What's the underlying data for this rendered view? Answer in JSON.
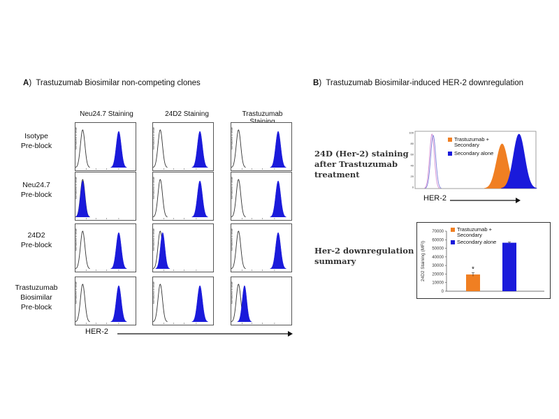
{
  "panel_a": {
    "letter": "A",
    "title": "Trastuzumab Biosimilar non-competing clones",
    "columns": [
      "Neu24.7 Staining",
      "24D2 Staining",
      "Trastuzumab Staining"
    ],
    "rows": [
      [
        "Isotype",
        "Pre-block"
      ],
      [
        "Neu24.7",
        "Pre-block"
      ],
      [
        "24D2",
        "Pre-block"
      ],
      [
        "Trastuzumab",
        "Biosimilar",
        "Pre-block"
      ]
    ],
    "axis_label": "HER-2"
  },
  "panel_b": {
    "letter": "B",
    "title": "Trastuzumab Biosimilar-induced HER-2 downregulation",
    "text1": [
      "24D (Her-2) staining",
      "after Trastuzumab",
      "treatment"
    ],
    "text2": [
      "Her-2 downregulation",
      "summary"
    ],
    "axis_label": "HER-2"
  },
  "colors": {
    "blue": "#1a1adb",
    "orange": "#f07f22",
    "isotype": "#333333"
  },
  "chart_data": [
    {
      "type": "area",
      "kind": "histogram-grid",
      "x_scale": "log",
      "ylabel": "Normalized To Mode",
      "xlabel": "HER-2",
      "columns": [
        "Neu24.7 Staining",
        "24D2 Staining",
        "Trastuzumab Staining"
      ],
      "rows": [
        "Isotype Pre-block",
        "Neu24.7 Pre-block",
        "24D2 Pre-block",
        "Trastuzumab Biosimilar Pre-block"
      ],
      "isotype_peak": 0.12,
      "stained_peaks": [
        [
          0.72,
          0.78,
          0.78
        ],
        [
          0.12,
          0.78,
          0.78
        ],
        [
          0.72,
          0.16,
          0.78
        ],
        [
          0.72,
          0.78,
          0.22
        ]
      ]
    },
    {
      "type": "area",
      "kind": "histogram-overlay",
      "xlabel": "HER-2",
      "yticks": [
        "100",
        "80",
        "60",
        "40",
        "20",
        "0"
      ],
      "series": [
        {
          "name": "Trastuzumab + Secondary",
          "color": "#f07f22",
          "peak": 0.72
        },
        {
          "name": "Secondary alone",
          "color": "#1a1adb",
          "peak": 0.86
        }
      ]
    },
    {
      "type": "bar",
      "ylabel": "24D2 Staining (MFI)",
      "ylim": [
        0,
        70000
      ],
      "yticks": [
        0,
        10000,
        20000,
        30000,
        40000,
        50000,
        60000,
        70000
      ],
      "categories": [
        "Trastuzumab + Secondary",
        "Secondary alone"
      ],
      "values": [
        19500,
        56500
      ],
      "errors": [
        2000,
        800
      ],
      "annotations": [
        "*",
        ""
      ],
      "colors": [
        "#f07f22",
        "#1a1adb"
      ],
      "legend": [
        {
          "label": "Trastuzumab + Secondary",
          "color": "#f07f22"
        },
        {
          "label": "Secondary alone",
          "color": "#1a1adb"
        }
      ]
    }
  ]
}
